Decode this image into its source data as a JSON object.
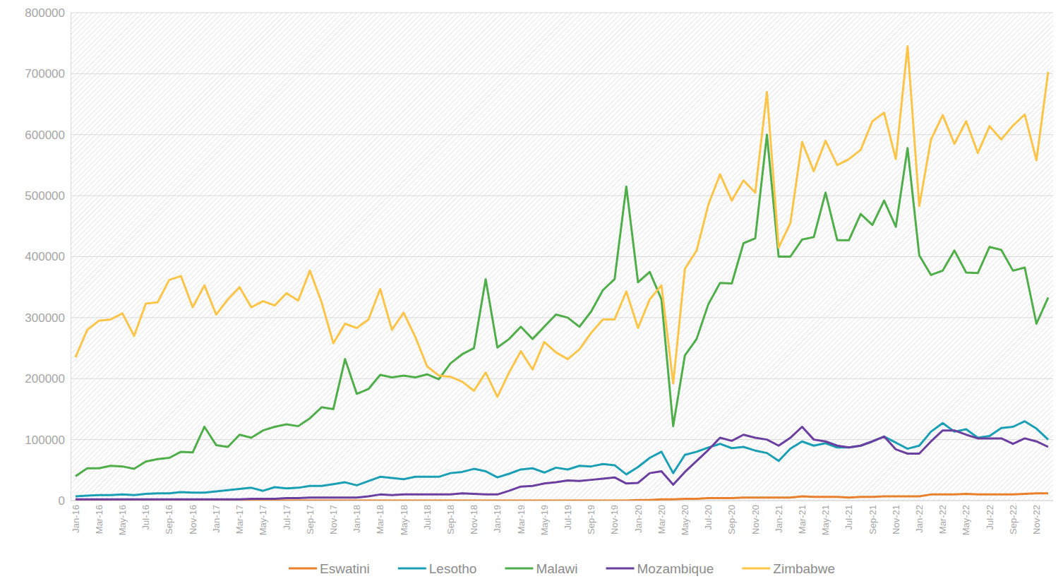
{
  "chart_data": {
    "type": "line",
    "categories": [
      "Jan-16",
      null,
      "Mar-16",
      null,
      "May-16",
      null,
      "Jul-16",
      null,
      "Sep-16",
      null,
      "Nov-16",
      null,
      "Jan-17",
      null,
      "Mar-17",
      null,
      "May-17",
      null,
      "Jul-17",
      null,
      "Sep-17",
      null,
      "Nov-17",
      null,
      "Jan-18",
      null,
      "Mar-18",
      null,
      "May-18",
      null,
      "Jul-18",
      null,
      "Sep-18",
      null,
      "Nov-18",
      null,
      "Jan-19",
      null,
      "Mar-19",
      null,
      "May-19",
      null,
      "Jul-19",
      null,
      "Sep-19",
      null,
      "Nov-19",
      null,
      "Jan-20",
      null,
      "Mar-20",
      null,
      "May-20",
      null,
      "Jul-20",
      null,
      "Sep-20",
      null,
      "Nov-20",
      null,
      "Jan-21",
      null,
      "Mar-21",
      null,
      "May-21",
      null,
      "Jul-21",
      null,
      "Sep-21",
      null,
      "Nov-21",
      null,
      "Jan-22",
      null,
      "Mar-22",
      null,
      "May-22",
      null,
      "Jul-22",
      null,
      "Sep-22",
      null,
      "Nov-22",
      null
    ],
    "series": [
      {
        "name": "Eswatini",
        "color": "#e8802c",
        "values": [
          0,
          0,
          0,
          0,
          0,
          0,
          0,
          0,
          0,
          0,
          0,
          0,
          0,
          0,
          0,
          0,
          0,
          0,
          0,
          0,
          0,
          0,
          0,
          0,
          0,
          0,
          0,
          0,
          0,
          0,
          0,
          0,
          0,
          0,
          0,
          0,
          0,
          0,
          0,
          0,
          0,
          0,
          0,
          0,
          0,
          0,
          0,
          0,
          1000,
          1000,
          2000,
          2000,
          3000,
          3000,
          4000,
          4000,
          4000,
          5000,
          5000,
          5000,
          5000,
          5000,
          7000,
          6000,
          6000,
          6000,
          5000,
          6000,
          6000,
          7000,
          7000,
          7000,
          7000,
          10000,
          10000,
          10000,
          11000,
          10000,
          10000,
          10000,
          10000,
          11000,
          12000,
          12000
        ]
      },
      {
        "name": "Lesotho",
        "color": "#1b9fb5",
        "values": [
          7000,
          8000,
          9000,
          9000,
          10000,
          9000,
          11000,
          12000,
          12000,
          14000,
          13000,
          13000,
          15000,
          17000,
          19000,
          21000,
          16000,
          22000,
          20000,
          21000,
          24000,
          24000,
          27000,
          30000,
          25000,
          32000,
          39000,
          37000,
          35000,
          39000,
          39000,
          39000,
          45000,
          47000,
          52000,
          48000,
          38000,
          44000,
          51000,
          53000,
          46000,
          54000,
          51000,
          57000,
          56000,
          60000,
          58000,
          43000,
          55000,
          70000,
          80000,
          45000,
          75000,
          80000,
          87000,
          93000,
          86000,
          88000,
          82000,
          78000,
          65000,
          85000,
          97000,
          90000,
          94000,
          87000,
          87000,
          90000,
          97000,
          105000,
          95000,
          85000,
          90000,
          113000,
          127000,
          113000,
          117000,
          103000,
          106000,
          119000,
          121000,
          130000,
          118000,
          100000
        ]
      },
      {
        "name": "Malawi",
        "color": "#4fae4a",
        "values": [
          40000,
          53000,
          53000,
          57000,
          56000,
          52000,
          64000,
          68000,
          70000,
          80000,
          79000,
          121000,
          91000,
          88000,
          108000,
          103000,
          115000,
          121000,
          125000,
          122000,
          135000,
          153000,
          150000,
          232000,
          175000,
          183000,
          206000,
          202000,
          205000,
          202000,
          207000,
          199000,
          225000,
          240000,
          250000,
          363000,
          251000,
          265000,
          285000,
          265000,
          285000,
          305000,
          300000,
          285000,
          310000,
          345000,
          363000,
          515000,
          358000,
          375000,
          330000,
          122000,
          238000,
          265000,
          322000,
          357000,
          356000,
          422000,
          430000,
          600000,
          400000,
          400000,
          428000,
          432000,
          505000,
          427000,
          427000,
          470000,
          452000,
          492000,
          449000,
          578000,
          402000,
          370000,
          377000,
          410000,
          374000,
          373000,
          416000,
          411000,
          377000,
          382000,
          290000,
          333000
        ]
      },
      {
        "name": "Mozambique",
        "color": "#6b3fa0",
        "values": [
          2000,
          2000,
          2000,
          2000,
          2000,
          2000,
          2000,
          2000,
          2000,
          2000,
          2000,
          2000,
          2000,
          2000,
          2000,
          3000,
          3000,
          3000,
          4000,
          4000,
          5000,
          5000,
          5000,
          5000,
          5000,
          7000,
          10000,
          9000,
          10000,
          10000,
          10000,
          10000,
          10000,
          12000,
          11000,
          10000,
          10000,
          16000,
          23000,
          24000,
          28000,
          30000,
          33000,
          32000,
          34000,
          36000,
          38000,
          28000,
          29000,
          45000,
          48000,
          26000,
          47000,
          65000,
          83000,
          103000,
          98000,
          108000,
          103000,
          100000,
          90000,
          103000,
          121000,
          100000,
          97000,
          90000,
          87000,
          90000,
          97000,
          105000,
          84000,
          77000,
          77000,
          97000,
          115000,
          115000,
          108000,
          102000,
          102000,
          102000,
          93000,
          102000,
          97000,
          88000
        ]
      },
      {
        "name": "Zimbabwe",
        "color": "#fcc54a",
        "values": [
          235000,
          280000,
          295000,
          297000,
          307000,
          270000,
          323000,
          325000,
          362000,
          368000,
          317000,
          353000,
          305000,
          330000,
          350000,
          317000,
          327000,
          320000,
          340000,
          328000,
          377000,
          325000,
          258000,
          290000,
          283000,
          297000,
          347000,
          280000,
          308000,
          268000,
          220000,
          205000,
          203000,
          195000,
          180000,
          210000,
          170000,
          210000,
          245000,
          215000,
          260000,
          243000,
          232000,
          248000,
          275000,
          297000,
          297000,
          343000,
          283000,
          330000,
          353000,
          192000,
          380000,
          410000,
          485000,
          535000,
          492000,
          525000,
          505000,
          670000,
          415000,
          455000,
          588000,
          540000,
          590000,
          550000,
          560000,
          575000,
          622000,
          636000,
          560000,
          745000,
          483000,
          592000,
          632000,
          585000,
          622000,
          570000,
          614000,
          592000,
          615000,
          633000,
          558000,
          703000
        ]
      }
    ],
    "ylim": [
      0,
      800000
    ],
    "yticks": [
      0,
      100000,
      200000,
      300000,
      400000,
      500000,
      600000,
      700000,
      800000
    ],
    "grid": true,
    "legend": "bottom"
  }
}
